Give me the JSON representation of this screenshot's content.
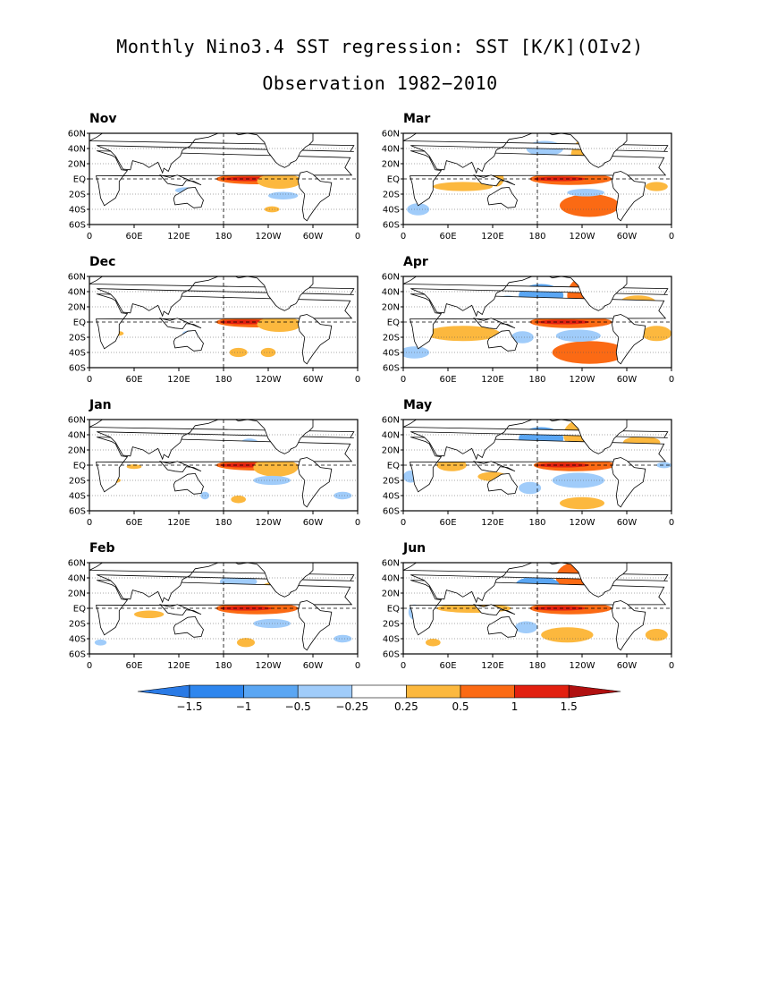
{
  "figure": {
    "title": "Monthly Nino3.4 SST regression: SST [K/K](OIv2)",
    "subtitle": "Observation 1982−2010"
  },
  "axes": {
    "lat_ticks": [
      "60N",
      "40N",
      "20N",
      "EQ",
      "20S",
      "40S",
      "60S"
    ],
    "lon_ticks": [
      "0",
      "60E",
      "120E",
      "180",
      "120W",
      "60W",
      "0"
    ],
    "lat_range": [
      -60,
      60
    ],
    "lon_range": [
      0,
      360
    ],
    "reference_lines": [
      "equator (dashed)",
      "180 meridian (dashed)",
      "latitude lines every 20° (dotted)"
    ]
  },
  "panels": [
    {
      "month": "Nov",
      "column": "left"
    },
    {
      "month": "Dec",
      "column": "left"
    },
    {
      "month": "Jan",
      "column": "left"
    },
    {
      "month": "Feb",
      "column": "left"
    },
    {
      "month": "Mar",
      "column": "right"
    },
    {
      "month": "Apr",
      "column": "right"
    },
    {
      "month": "May",
      "column": "right"
    },
    {
      "month": "Jun",
      "column": "right"
    }
  ],
  "colorbar": {
    "labels": [
      "−1.5",
      "−1",
      "−0.5",
      "−0.25",
      "0.25",
      "0.5",
      "1",
      "1.5"
    ],
    "colors": [
      "#2a7ae5",
      "#2e86ee",
      "#5aa6f3",
      "#a0ccfa",
      "#ffffff",
      "#fcb83e",
      "#fb6a14",
      "#e22010",
      "#b01010"
    ]
  },
  "map_colors": {
    "land": "#ffffff",
    "coast": "#000000",
    "warm_weak": "#fcb83e",
    "warm_mid": "#fb6a14",
    "warm_strong": "#e22010",
    "cool_weak": "#a0ccfa",
    "cool_mid": "#5aa6f3"
  }
}
